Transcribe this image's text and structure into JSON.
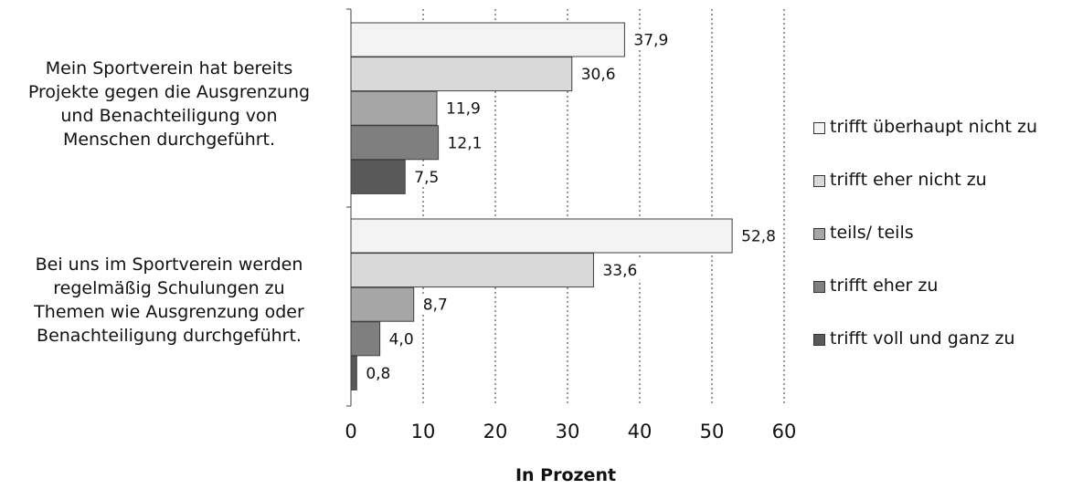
{
  "chart_data": {
    "type": "bar",
    "orientation": "horizontal",
    "categories": [
      "Mein Sportverein hat bereits Projekte gegen die Ausgrenzung und Benachteiligung von Menschen durchgeführt.",
      "Bei uns im Sportverein werden regelmäßig Schulungen zu Themen wie Ausgrenzung oder Benachteiligung durchgeführt."
    ],
    "category_lines": [
      [
        "Mein Sportverein hat bereits",
        "Projekte gegen die Ausgrenzung",
        "und Benachteiligung von",
        "Menschen durchgeführt."
      ],
      [
        "Bei uns im Sportverein werden",
        "regelmäßig Schulungen zu",
        "Themen wie Ausgrenzung oder",
        "Benachteiligung durchgeführt."
      ]
    ],
    "series": [
      {
        "name": "trifft überhaupt nicht zu",
        "color": "#f3f3f3",
        "values": [
          37.9,
          52.8
        ],
        "labels": [
          "37,9",
          "52,8"
        ]
      },
      {
        "name": "trifft eher nicht zu",
        "color": "#d9d9d9",
        "values": [
          30.6,
          33.6
        ],
        "labels": [
          "30,6",
          "33,6"
        ]
      },
      {
        "name": "teils/ teils",
        "color": "#a6a6a6",
        "values": [
          11.9,
          8.7
        ],
        "labels": [
          "11,9",
          "8,7"
        ]
      },
      {
        "name": "trifft eher zu",
        "color": "#7f7f7f",
        "values": [
          12.1,
          4.0
        ],
        "labels": [
          "12,1",
          "4,0"
        ]
      },
      {
        "name": "trifft voll und ganz zu",
        "color": "#595959",
        "values": [
          7.5,
          0.8
        ],
        "labels": [
          "7,5",
          "0,8"
        ]
      }
    ],
    "xlabel": "In Prozent",
    "xlim": [
      0,
      60
    ],
    "xticks": [
      0,
      10,
      20,
      30,
      40,
      50,
      60
    ],
    "grid": "vertical dotted",
    "legend_position": "right"
  }
}
